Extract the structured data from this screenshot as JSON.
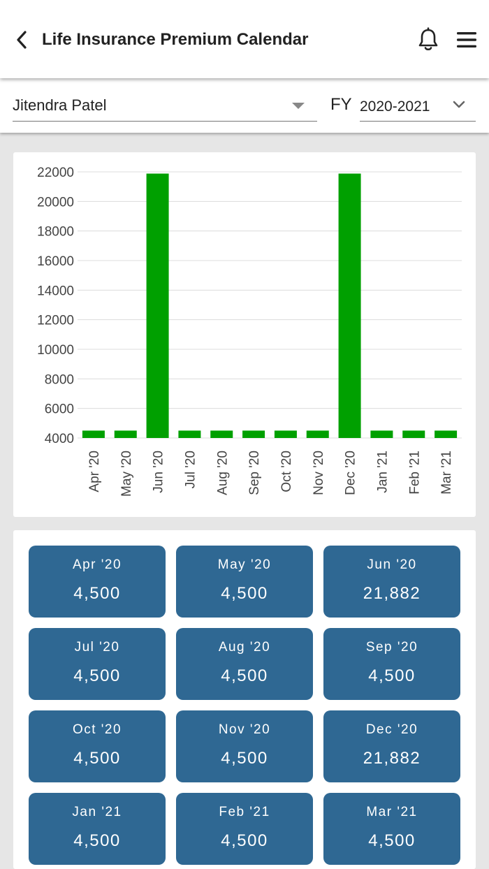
{
  "header": {
    "title": "Life Insurance Premium Calendar",
    "back_icon": "back-arrow-icon",
    "bell_icon": "bell-icon",
    "menu_icon": "hamburger-menu-icon"
  },
  "filters": {
    "person": "Jitendra Patel",
    "fy_label": "FY",
    "fy_value": "2020-2021"
  },
  "colors": {
    "bar": "#00a000",
    "tile": "#2f6893"
  },
  "chart_data": {
    "type": "bar",
    "categories": [
      "Apr '20",
      "May '20",
      "Jun '20",
      "Jul '20",
      "Aug '20",
      "Sep '20",
      "Oct '20",
      "Nov '20",
      "Dec '20",
      "Jan '21",
      "Feb '21",
      "Mar '21"
    ],
    "values": [
      4500,
      4500,
      21882,
      4500,
      4500,
      4500,
      4500,
      4500,
      21882,
      4500,
      4500,
      4500
    ],
    "yticks": [
      4000,
      6000,
      8000,
      10000,
      12000,
      14000,
      16000,
      18000,
      20000,
      22000
    ],
    "ylim": [
      4000,
      22000
    ],
    "title": "",
    "xlabel": "",
    "ylabel": "",
    "grid": true
  },
  "tiles": [
    {
      "month": "Apr '20",
      "amount": "4,500"
    },
    {
      "month": "May '20",
      "amount": "4,500"
    },
    {
      "month": "Jun '20",
      "amount": "21,882"
    },
    {
      "month": "Jul '20",
      "amount": "4,500"
    },
    {
      "month": "Aug '20",
      "amount": "4,500"
    },
    {
      "month": "Sep '20",
      "amount": "4,500"
    },
    {
      "month": "Oct '20",
      "amount": "4,500"
    },
    {
      "month": "Nov '20",
      "amount": "4,500"
    },
    {
      "month": "Dec '20",
      "amount": "21,882"
    },
    {
      "month": "Jan '21",
      "amount": "4,500"
    },
    {
      "month": "Feb '21",
      "amount": "4,500"
    },
    {
      "month": "Mar '21",
      "amount": "4,500"
    }
  ]
}
